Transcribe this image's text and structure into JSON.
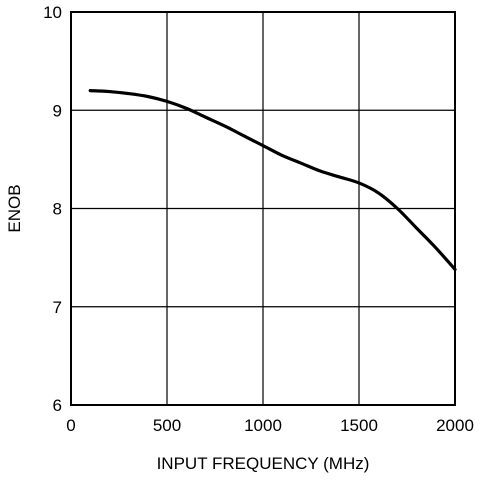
{
  "chart_data": {
    "type": "line",
    "title": "",
    "xlabel": "INPUT FREQUENCY (MHz)",
    "ylabel": "ENOB",
    "xlim": [
      0,
      2000
    ],
    "ylim": [
      6,
      10
    ],
    "x_ticks": [
      0,
      500,
      1000,
      1500,
      2000
    ],
    "y_ticks": [
      6,
      7,
      8,
      9,
      10
    ],
    "x_tick_labels": [
      "0",
      "500",
      "1000",
      "1500",
      "2000"
    ],
    "y_tick_labels": [
      "6",
      "7",
      "8",
      "9",
      "10"
    ],
    "grid": true,
    "legend": "none",
    "series": [
      {
        "color": "#000000",
        "x": [
          100,
          200,
          300,
          400,
          500,
          600,
          700,
          800,
          900,
          1000,
          1100,
          1200,
          1300,
          1400,
          1500,
          1600,
          1700,
          1800,
          1900,
          2000
        ],
        "y": [
          9.2,
          9.19,
          9.17,
          9.14,
          9.09,
          9.02,
          8.93,
          8.84,
          8.74,
          8.64,
          8.54,
          8.46,
          8.38,
          8.32,
          8.26,
          8.16,
          8.0,
          7.8,
          7.6,
          7.38
        ]
      }
    ]
  }
}
